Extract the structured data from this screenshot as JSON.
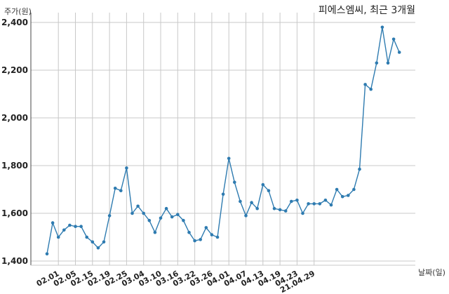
{
  "chart_data": {
    "type": "line",
    "title": "피에스엠씨, 최근 3개월",
    "ylabel": "주가(원)",
    "xlabel": "날짜(일)",
    "ylim": [
      1400,
      2400
    ],
    "yticks": [
      "1,400",
      "1,600",
      "1,800",
      "2,000",
      "2,200",
      "2,400"
    ],
    "ytick_values": [
      1400,
      1600,
      1800,
      2000,
      2200,
      2400
    ],
    "xtick_labels": [
      "02.01",
      "02.05",
      "02.15",
      "02.19",
      "02.25",
      "03.04",
      "03.10",
      "03.16",
      "03.22",
      "03.26",
      "04.01",
      "04.07",
      "04.13",
      "04.19",
      "04.23",
      "21.04.29"
    ],
    "xtick_indices": [
      2,
      5,
      8,
      11,
      14,
      17,
      20,
      23,
      26,
      29,
      32,
      35,
      38,
      41,
      44,
      47
    ],
    "grid": true,
    "color": "#2e7bb0",
    "values": [
      1430,
      1560,
      1500,
      1530,
      1550,
      1545,
      1545,
      1500,
      1480,
      1455,
      1480,
      1590,
      1705,
      1695,
      1790,
      1600,
      1630,
      1600,
      1570,
      1520,
      1580,
      1620,
      1585,
      1595,
      1570,
      1520,
      1485,
      1490,
      1540,
      1510,
      1500,
      1680,
      1830,
      1730,
      1650,
      1590,
      1645,
      1620,
      1720,
      1695,
      1620,
      1615,
      1610,
      1650,
      1655,
      1600,
      1640,
      1640,
      1640,
      1655,
      1635,
      1700,
      1670,
      1675,
      1700,
      1785,
      2140,
      2120,
      2230,
      2380,
      2230,
      2330,
      2275
    ]
  }
}
